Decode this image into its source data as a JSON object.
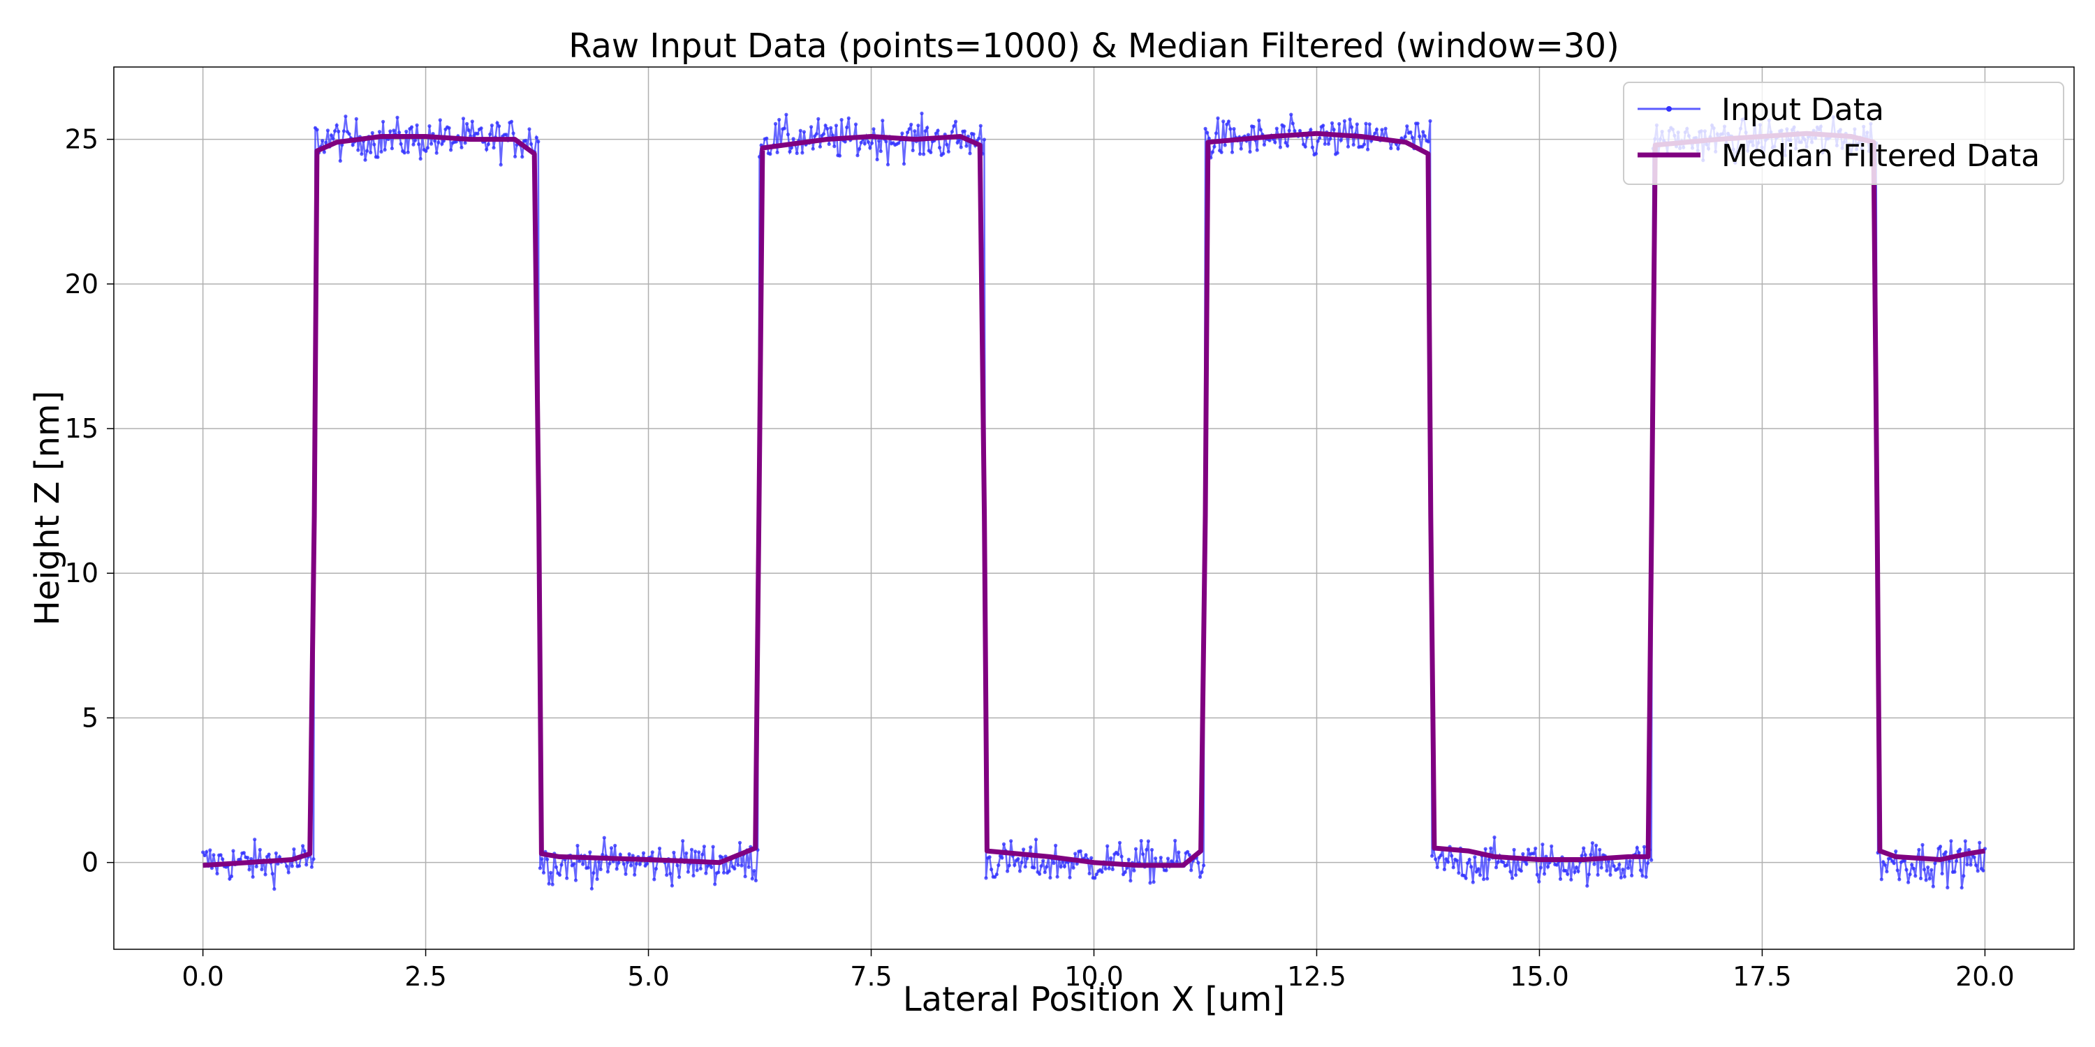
{
  "chart_data": {
    "type": "line",
    "title": "Raw Input Data (points=1000) & Median Filtered (window=30)",
    "xlabel": "Lateral Position X [um]",
    "ylabel": "Height Z [nm]",
    "xlim": [
      -1.0,
      21.0
    ],
    "ylim": [
      -3.0,
      27.5
    ],
    "xticks": [
      0.0,
      2.5,
      5.0,
      7.5,
      10.0,
      12.5,
      15.0,
      17.5,
      20.0
    ],
    "xtick_labels": [
      "0.0",
      "2.5",
      "5.0",
      "7.5",
      "10.0",
      "12.5",
      "15.0",
      "17.5",
      "20.0"
    ],
    "yticks": [
      0,
      5,
      10,
      15,
      20,
      25
    ],
    "ytick_labels": [
      "0",
      "5",
      "10",
      "15",
      "20",
      "25"
    ],
    "grid": true,
    "legend_position": "top-right",
    "series": [
      {
        "name": "Input Data",
        "color": "#3333ff",
        "style": "thin line with small dot markers, noisy",
        "points": 1000,
        "x_range": [
          0.0,
          20.0
        ],
        "low_level": 0.0,
        "high_level": 25.0,
        "noise_amplitude": 0.5,
        "high_intervals": [
          [
            1.25,
            3.77
          ],
          [
            6.24,
            8.77
          ],
          [
            11.25,
            13.78
          ],
          [
            16.26,
            18.79
          ]
        ]
      },
      {
        "name": "Median Filtered Data",
        "color": "#800080",
        "style": "thick line",
        "window": 30,
        "x": [
          0.0,
          0.5,
          1.0,
          1.2,
          1.25,
          1.28,
          1.5,
          2.0,
          2.5,
          3.0,
          3.5,
          3.72,
          3.77,
          3.8,
          4.0,
          5.0,
          5.8,
          6.2,
          6.24,
          6.28,
          7.0,
          7.5,
          8.0,
          8.5,
          8.72,
          8.77,
          8.8,
          9.5,
          10.0,
          10.5,
          11.0,
          11.2,
          11.25,
          11.28,
          12.0,
          12.5,
          13.0,
          13.5,
          13.75,
          13.78,
          13.82,
          14.2,
          14.5,
          15.0,
          15.5,
          16.0,
          16.22,
          16.26,
          16.3,
          17.0,
          17.5,
          18.0,
          18.5,
          18.75,
          18.79,
          18.82,
          19.0,
          19.5,
          19.8,
          20.0
        ],
        "y": [
          -0.1,
          0.0,
          0.1,
          0.3,
          12.0,
          24.6,
          24.9,
          25.1,
          25.1,
          25.0,
          25.0,
          24.5,
          12.0,
          0.3,
          0.2,
          0.1,
          0.0,
          0.5,
          12.0,
          24.7,
          25.0,
          25.1,
          25.0,
          25.1,
          24.8,
          12.0,
          0.4,
          0.2,
          0.0,
          -0.1,
          -0.1,
          0.4,
          12.0,
          24.9,
          25.1,
          25.2,
          25.1,
          24.9,
          24.5,
          12.0,
          0.5,
          0.4,
          0.2,
          0.1,
          0.1,
          0.2,
          0.2,
          12.0,
          24.8,
          25.0,
          25.1,
          25.2,
          25.1,
          24.9,
          12.0,
          0.4,
          0.2,
          0.1,
          0.3,
          0.4
        ]
      }
    ]
  }
}
